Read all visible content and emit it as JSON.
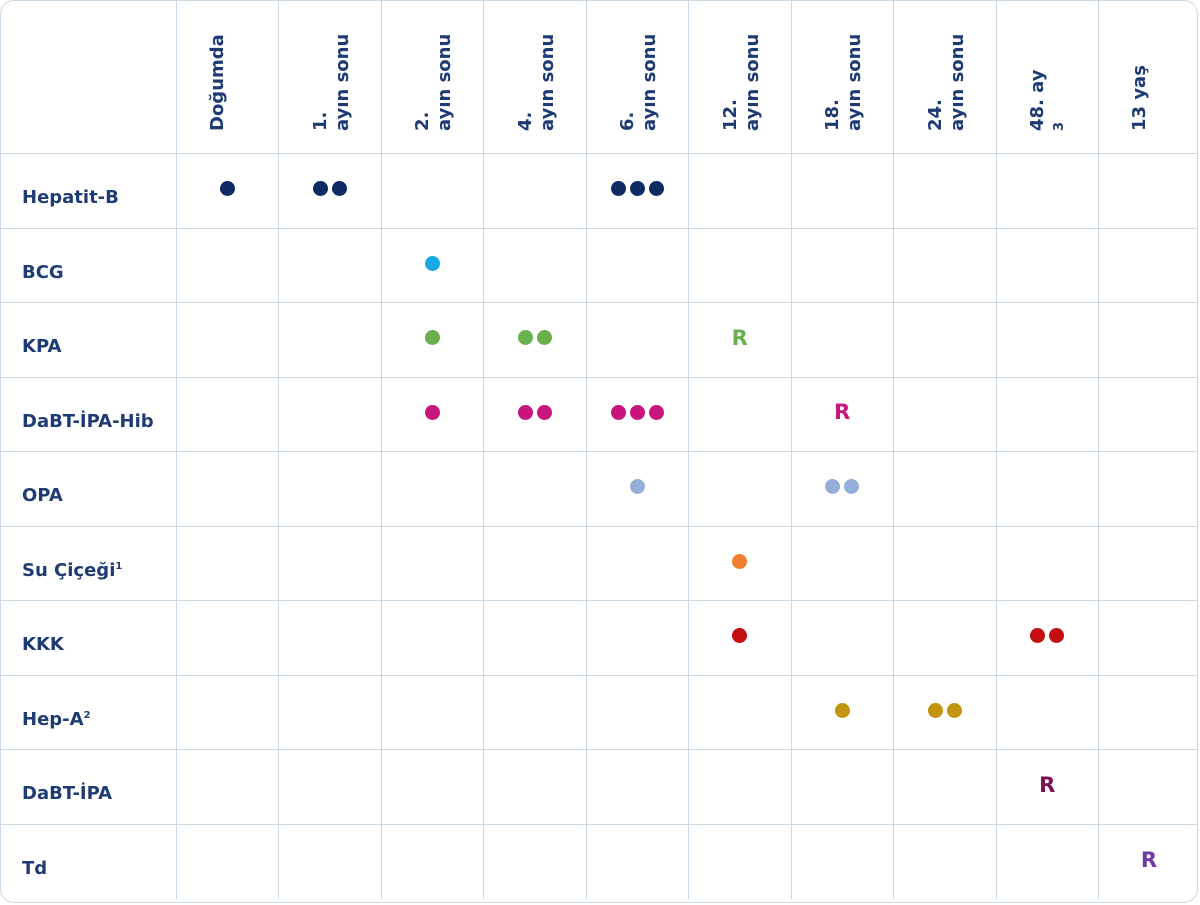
{
  "columns": [
    {
      "line1": "Doğumda",
      "line2": ""
    },
    {
      "line1": "1.",
      "line2": "ayın sonu"
    },
    {
      "line1": "2.",
      "line2": "ayın sonu"
    },
    {
      "line1": "4.",
      "line2": "ayın sonu"
    },
    {
      "line1": "6.",
      "line2": "ayın sonu"
    },
    {
      "line1": "12.",
      "line2": "ayın sonu"
    },
    {
      "line1": "18.",
      "line2": "ayın sonu"
    },
    {
      "line1": "24.",
      "line2": "ayın sonu"
    },
    {
      "line1": "48. ay",
      "line2": "",
      "sup": "3"
    },
    {
      "line1": "13 yaş",
      "line2": ""
    }
  ],
  "rows": [
    {
      "label": "Hepatit-B",
      "sup": "",
      "color": "#0d2a63",
      "cells": [
        {
          "col": 0,
          "dots": 1
        },
        {
          "col": 1,
          "dots": 2
        },
        {
          "col": 4,
          "dots": 3
        }
      ]
    },
    {
      "label": "BCG",
      "sup": "",
      "color": "#19a9e1",
      "cells": [
        {
          "col": 2,
          "dots": 1
        }
      ]
    },
    {
      "label": "KPA",
      "sup": "",
      "color": "#6ab04c",
      "cells": [
        {
          "col": 2,
          "dots": 1
        },
        {
          "col": 3,
          "dots": 2
        },
        {
          "col": 5,
          "text": "R"
        }
      ]
    },
    {
      "label": "DaBT-İPA-Hib",
      "sup": "",
      "color": "#c8157e",
      "cells": [
        {
          "col": 2,
          "dots": 1
        },
        {
          "col": 3,
          "dots": 2
        },
        {
          "col": 4,
          "dots": 3
        },
        {
          "col": 6,
          "text": "R"
        }
      ]
    },
    {
      "label": "OPA",
      "sup": "",
      "color": "#94add9",
      "cells": [
        {
          "col": 4,
          "dots": 1
        },
        {
          "col": 6,
          "dots": 2
        }
      ]
    },
    {
      "label": "Su Çiçeği",
      "sup": "1",
      "color": "#f07f32",
      "cells": [
        {
          "col": 5,
          "dots": 1
        }
      ]
    },
    {
      "label": "KKK",
      "sup": "",
      "color": "#c10f12",
      "cells": [
        {
          "col": 5,
          "dots": 1
        },
        {
          "col": 8,
          "dots": 2
        }
      ]
    },
    {
      "label": "Hep-A",
      "sup": "2",
      "color": "#c49310",
      "cells": [
        {
          "col": 6,
          "dots": 1
        },
        {
          "col": 7,
          "dots": 2
        }
      ]
    },
    {
      "label": "DaBT-İPA",
      "sup": "",
      "color": "#7a1152",
      "cells": [
        {
          "col": 8,
          "text": "R"
        }
      ]
    },
    {
      "label": "Td",
      "sup": "",
      "color": "#6f3aa3",
      "cells": [
        {
          "col": 9,
          "text": "R"
        }
      ]
    }
  ]
}
